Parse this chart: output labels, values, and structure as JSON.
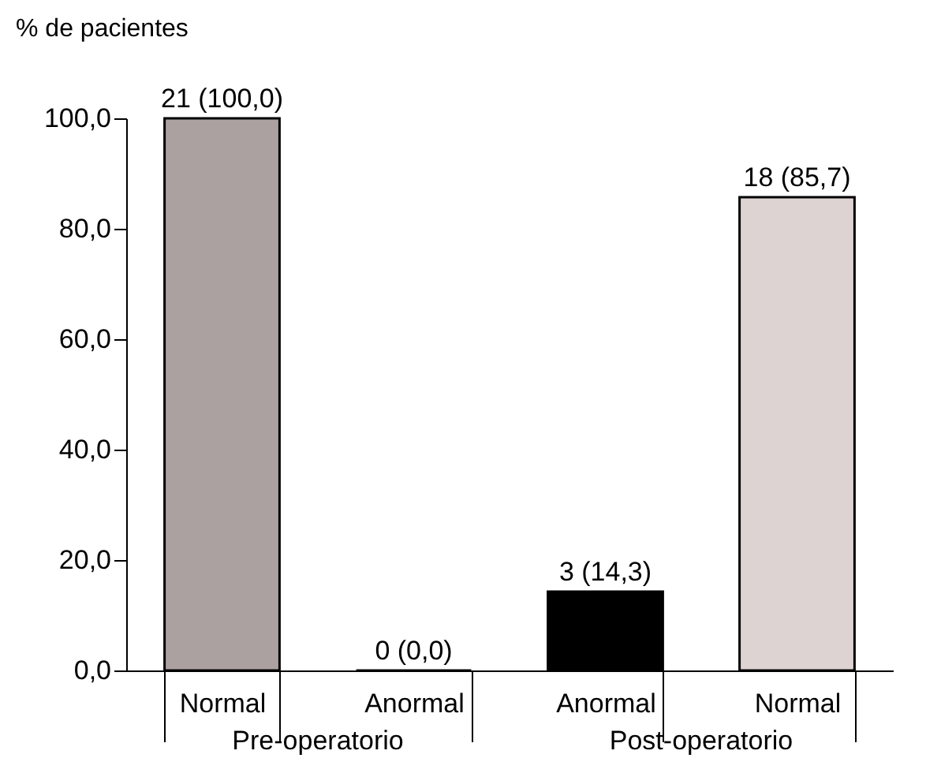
{
  "chart_data": {
    "type": "bar",
    "ylabel": "% de pacientes",
    "categories": [
      "Normal",
      "Anormal",
      "Anormal",
      "Normal"
    ],
    "values": [
      100,
      0,
      14.3,
      85.7
    ],
    "colors": [
      "#aba1a0",
      "#000000",
      "#000000",
      "#ddd3d2"
    ],
    "value_labels": [
      "21 (100,0)",
      "0 (0,0)",
      "3 (14,3)",
      "18 (85,7)"
    ],
    "ylim": [
      0,
      100
    ],
    "yticks": [
      {
        "value": 0,
        "label": "0,0"
      },
      {
        "value": 20,
        "label": "20,0"
      },
      {
        "value": 40,
        "label": "40,0"
      },
      {
        "value": 60,
        "label": "60,0"
      },
      {
        "value": 80,
        "label": "80,0"
      },
      {
        "value": 100,
        "label": "100,0"
      }
    ],
    "annotations": [
      "Pre-operatorio",
      "Post-operatorio"
    ],
    "grid": false,
    "legend": false
  }
}
